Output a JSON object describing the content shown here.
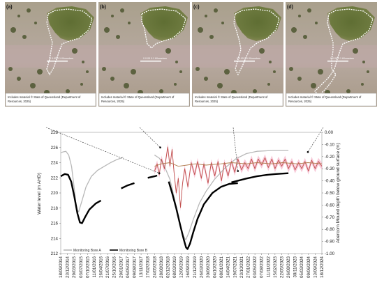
{
  "panels": [
    {
      "label": "(a)",
      "credit_line1": "Includes material © State of Queensland (Department of",
      "credit_line2": "Resources, 2025)"
    },
    {
      "label": "(b)",
      "credit_line1": "Includes material © State of Queensland (Department of",
      "credit_line2": "Resources, 2025)"
    },
    {
      "label": "(c)",
      "credit_line1": "Includes material © State of Queensland (Department of",
      "credit_line2": "Resources, 2025)"
    },
    {
      "label": "(d)",
      "credit_line1": "Includes material © State of Queensland (Department of",
      "credit_line2": "Resources, 2025)"
    }
  ],
  "scale_text": "0  0.05  0.1 Kilometres",
  "colors": {
    "bore_a": "#b8b8b8",
    "bore_b": "#000000",
    "mound_depth": "#c0504d",
    "mound_band": "#f5b8cc",
    "tan_series": "#b07a4e"
  },
  "chart_data": {
    "type": "line",
    "ylabel": "Water level (m AHD)",
    "y2label": "Abercorn Mound depth below ground surface (m)",
    "ylim": [
      212,
      228
    ],
    "y2lim": [
      -1.0,
      0.0
    ],
    "y_ticks": [
      "212",
      "214",
      "216",
      "218",
      "220",
      "222",
      "224",
      "226",
      "228"
    ],
    "y2_ticks": [
      "-1.00",
      "-0.90",
      "-0.80",
      "-0.70",
      "-0.60",
      "-0.50",
      "-0.40",
      "-0.30",
      "-0.20",
      "-0.10",
      "0.00"
    ],
    "x_tick_labels": [
      "18/09/2014",
      "23/12/2014",
      "29/03/2015",
      "03/07/2015",
      "07/10/2015",
      "11/01/2016",
      "16/04/2016",
      "21/07/2016",
      "25/10/2016",
      "29/01/2017",
      "05/05/2017",
      "09/08/2017",
      "13/11/2017",
      "17/02/2018",
      "24/05/2018",
      "28/08/2018",
      "02/12/2018",
      "08/03/2019",
      "12/06/2019",
      "16/09/2019",
      "21/12/2019",
      "26/03/2020",
      "30/06/2020",
      "04/10/2020",
      "08/01/2021",
      "14/04/2021",
      "19/07/2021",
      "23/10/2021",
      "27/01/2022",
      "03/05/2022",
      "07/08/2022",
      "11/11/2022",
      "15/02/2023",
      "22/05/2023",
      "26/08/2023",
      "30/11/2023",
      "05/03/2024",
      "09/06/2024",
      "13/09/2024",
      "18/12/2024"
    ],
    "legend": [
      "Monitoring Bore A",
      "Monitoring Bore B"
    ],
    "series": [
      {
        "name": "Monitoring Bore A",
        "axis": "left",
        "color": "#b8b8b8",
        "points": [
          [
            "2014-09-18",
            225.3
          ],
          [
            "2014-10-15",
            225.4
          ],
          [
            "2014-12-01",
            225.5
          ],
          [
            "2015-01-10",
            225.0
          ],
          [
            "2015-02-20",
            223.5
          ],
          [
            "2015-04-01",
            220.5
          ],
          [
            "2015-05-01",
            217.8
          ],
          [
            "2015-06-01",
            217.5
          ],
          [
            "2015-07-20",
            219.0
          ],
          [
            "2015-09-15",
            220.8
          ],
          [
            "2015-12-01",
            222.2
          ],
          [
            "2016-03-01",
            223.0
          ],
          [
            "2016-06-01",
            223.5
          ],
          [
            "2016-09-01",
            224.0
          ],
          [
            "2016-12-01",
            224.4
          ],
          [
            "2017-03-01",
            224.7
          ]
        ]
      },
      {
        "name": "Monitoring Bore A",
        "axis": "left",
        "color": "#b8b8b8",
        "points": [
          [
            "2018-05-24",
            225.0
          ],
          [
            "2018-08-01",
            224.6
          ],
          [
            "2018-10-01",
            223.8
          ],
          [
            "2019-01-01",
            221.8
          ],
          [
            "2019-03-01",
            219.5
          ],
          [
            "2019-05-01",
            216.8
          ],
          [
            "2019-07-01",
            214.5
          ],
          [
            "2019-08-15",
            213.8
          ],
          [
            "2019-10-01",
            214.8
          ],
          [
            "2019-12-01",
            216.5
          ],
          [
            "2020-03-01",
            218.7
          ],
          [
            "2020-06-01",
            220.2
          ],
          [
            "2020-10-01",
            221.8
          ],
          [
            "2021-03-01",
            223.3
          ],
          [
            "2021-08-01",
            224.5
          ],
          [
            "2022-01-01",
            225.2
          ],
          [
            "2022-06-01",
            225.5
          ],
          [
            "2023-01-01",
            225.6
          ],
          [
            "2023-08-26",
            225.6
          ]
        ]
      },
      {
        "name": "Monitoring Bore B",
        "axis": "left",
        "color": "#000000",
        "points": [
          [
            "2014-09-18",
            222.2
          ],
          [
            "2014-11-15",
            222.5
          ],
          [
            "2015-01-01",
            222.4
          ],
          [
            "2015-02-15",
            221.5
          ],
          [
            "2015-04-01",
            219.5
          ],
          [
            "2015-05-15",
            217.3
          ],
          [
            "2015-06-20",
            216.1
          ],
          [
            "2015-07-20",
            216.0
          ],
          [
            "2015-09-01",
            216.8
          ],
          [
            "2015-11-01",
            217.8
          ],
          [
            "2016-02-01",
            218.6
          ],
          [
            "2016-04-16",
            219.0
          ]
        ]
      },
      {
        "name": "Monitoring Bore B",
        "axis": "left",
        "color": "#000000",
        "points": [
          [
            "2017-02-01",
            220.6
          ],
          [
            "2017-05-05",
            221.0
          ],
          [
            "2017-08-09",
            221.3
          ]
        ]
      },
      {
        "name": "Monitoring Bore B",
        "axis": "left",
        "color": "#000000",
        "points": [
          [
            "2018-02-17",
            222.0
          ],
          [
            "2018-05-24",
            222.2
          ],
          [
            "2018-07-01",
            222.3
          ]
        ]
      },
      {
        "name": "Monitoring Bore B",
        "axis": "left",
        "color": "#000000",
        "points": [
          [
            "2018-12-15",
            221.5
          ],
          [
            "2019-02-01",
            220.0
          ],
          [
            "2019-04-01",
            218.0
          ],
          [
            "2019-06-01",
            215.6
          ],
          [
            "2019-07-20",
            213.8
          ],
          [
            "2019-08-20",
            212.8
          ],
          [
            "2019-09-10",
            212.6
          ],
          [
            "2019-10-15",
            213.3
          ],
          [
            "2019-12-01",
            214.8
          ],
          [
            "2020-02-01",
            216.6
          ],
          [
            "2020-05-01",
            218.5
          ],
          [
            "2020-09-01",
            220.0
          ],
          [
            "2021-01-01",
            220.8
          ],
          [
            "2021-05-01",
            221.2
          ],
          [
            "2021-09-01",
            221.3
          ]
        ]
      },
      {
        "name": "Monitoring Bore B",
        "axis": "left",
        "color": "#000000",
        "points": [
          [
            "2021-06-01",
            221.4
          ],
          [
            "2022-01-01",
            221.9
          ],
          [
            "2022-06-01",
            222.2
          ],
          [
            "2022-11-01",
            222.4
          ],
          [
            "2023-03-01",
            222.5
          ],
          [
            "2023-08-26",
            222.6
          ]
        ]
      },
      {
        "axis": "right",
        "color": "#c0504d",
        "points": [
          [
            "2018-05-24",
            -0.32
          ],
          [
            "2018-07-01",
            -0.26
          ],
          [
            "2018-08-01",
            -0.35
          ],
          [
            "2018-09-01",
            -0.22
          ],
          [
            "2018-10-15",
            -0.3
          ],
          [
            "2018-12-01",
            -0.12
          ],
          [
            "2019-01-01",
            -0.28
          ],
          [
            "2019-02-01",
            -0.14
          ],
          [
            "2019-03-01",
            -0.33
          ],
          [
            "2019-04-01",
            -0.5
          ],
          [
            "2019-05-01",
            -0.38
          ],
          [
            "2019-06-01",
            -0.62
          ],
          [
            "2019-07-01",
            -0.42
          ],
          [
            "2019-08-01",
            -0.3
          ],
          [
            "2019-09-15",
            -0.45
          ],
          [
            "2019-11-01",
            -0.25
          ],
          [
            "2019-12-21",
            -0.35
          ],
          [
            "2020-02-01",
            -0.24
          ],
          [
            "2020-03-26",
            -0.38
          ],
          [
            "2020-05-01",
            -0.26
          ],
          [
            "2020-06-30",
            -0.42
          ],
          [
            "2020-08-15",
            -0.25
          ],
          [
            "2020-10-04",
            -0.36
          ],
          [
            "2020-11-20",
            -0.24
          ],
          [
            "2021-01-08",
            -0.4
          ],
          [
            "2021-02-20",
            -0.25
          ],
          [
            "2021-04-14",
            -0.36
          ],
          [
            "2021-06-01",
            -0.24
          ],
          [
            "2021-07-19",
            -0.33
          ],
          [
            "2021-09-01",
            -0.22
          ],
          [
            "2021-10-23",
            -0.31
          ],
          [
            "2021-12-10",
            -0.25
          ],
          [
            "2022-01-27",
            -0.3
          ],
          [
            "2022-03-15",
            -0.22
          ],
          [
            "2022-05-03",
            -0.3
          ],
          [
            "2022-06-20",
            -0.22
          ],
          [
            "2022-08-07",
            -0.27
          ],
          [
            "2022-09-25",
            -0.21
          ],
          [
            "2022-11-11",
            -0.29
          ],
          [
            "2023-01-01",
            -0.22
          ],
          [
            "2023-02-15",
            -0.3
          ],
          [
            "2023-04-05",
            -0.23
          ],
          [
            "2023-05-22",
            -0.28
          ],
          [
            "2023-07-10",
            -0.22
          ],
          [
            "2023-08-26",
            -0.3
          ],
          [
            "2023-10-15",
            -0.24
          ],
          [
            "2023-11-30",
            -0.31
          ],
          [
            "2024-01-20",
            -0.25
          ],
          [
            "2024-03-05",
            -0.3
          ],
          [
            "2024-04-20",
            -0.24
          ],
          [
            "2024-06-09",
            -0.32
          ],
          [
            "2024-07-25",
            -0.23
          ],
          [
            "2024-09-13",
            -0.3
          ],
          [
            "2024-10-30",
            -0.24
          ],
          [
            "2024-12-18",
            -0.28
          ]
        ]
      },
      {
        "axis": "right",
        "color": "#b07a4e",
        "points": [
          [
            "2018-05-24",
            -0.28
          ],
          [
            "2018-09-01",
            -0.26
          ],
          [
            "2019-01-01",
            -0.25
          ],
          [
            "2019-05-01",
            -0.28
          ],
          [
            "2019-09-01",
            -0.27
          ],
          [
            "2020-01-01",
            -0.26
          ],
          [
            "2020-06-01",
            -0.27
          ],
          [
            "2021-01-01",
            -0.26
          ],
          [
            "2021-06-01",
            -0.25
          ],
          [
            "2022-01-01",
            -0.26
          ],
          [
            "2022-06-01",
            -0.25
          ],
          [
            "2023-01-01",
            -0.26
          ],
          [
            "2023-06-01",
            -0.25
          ],
          [
            "2024-01-01",
            -0.26
          ],
          [
            "2024-06-01",
            -0.25
          ],
          [
            "2024-12-18",
            -0.26
          ]
        ]
      }
    ]
  }
}
